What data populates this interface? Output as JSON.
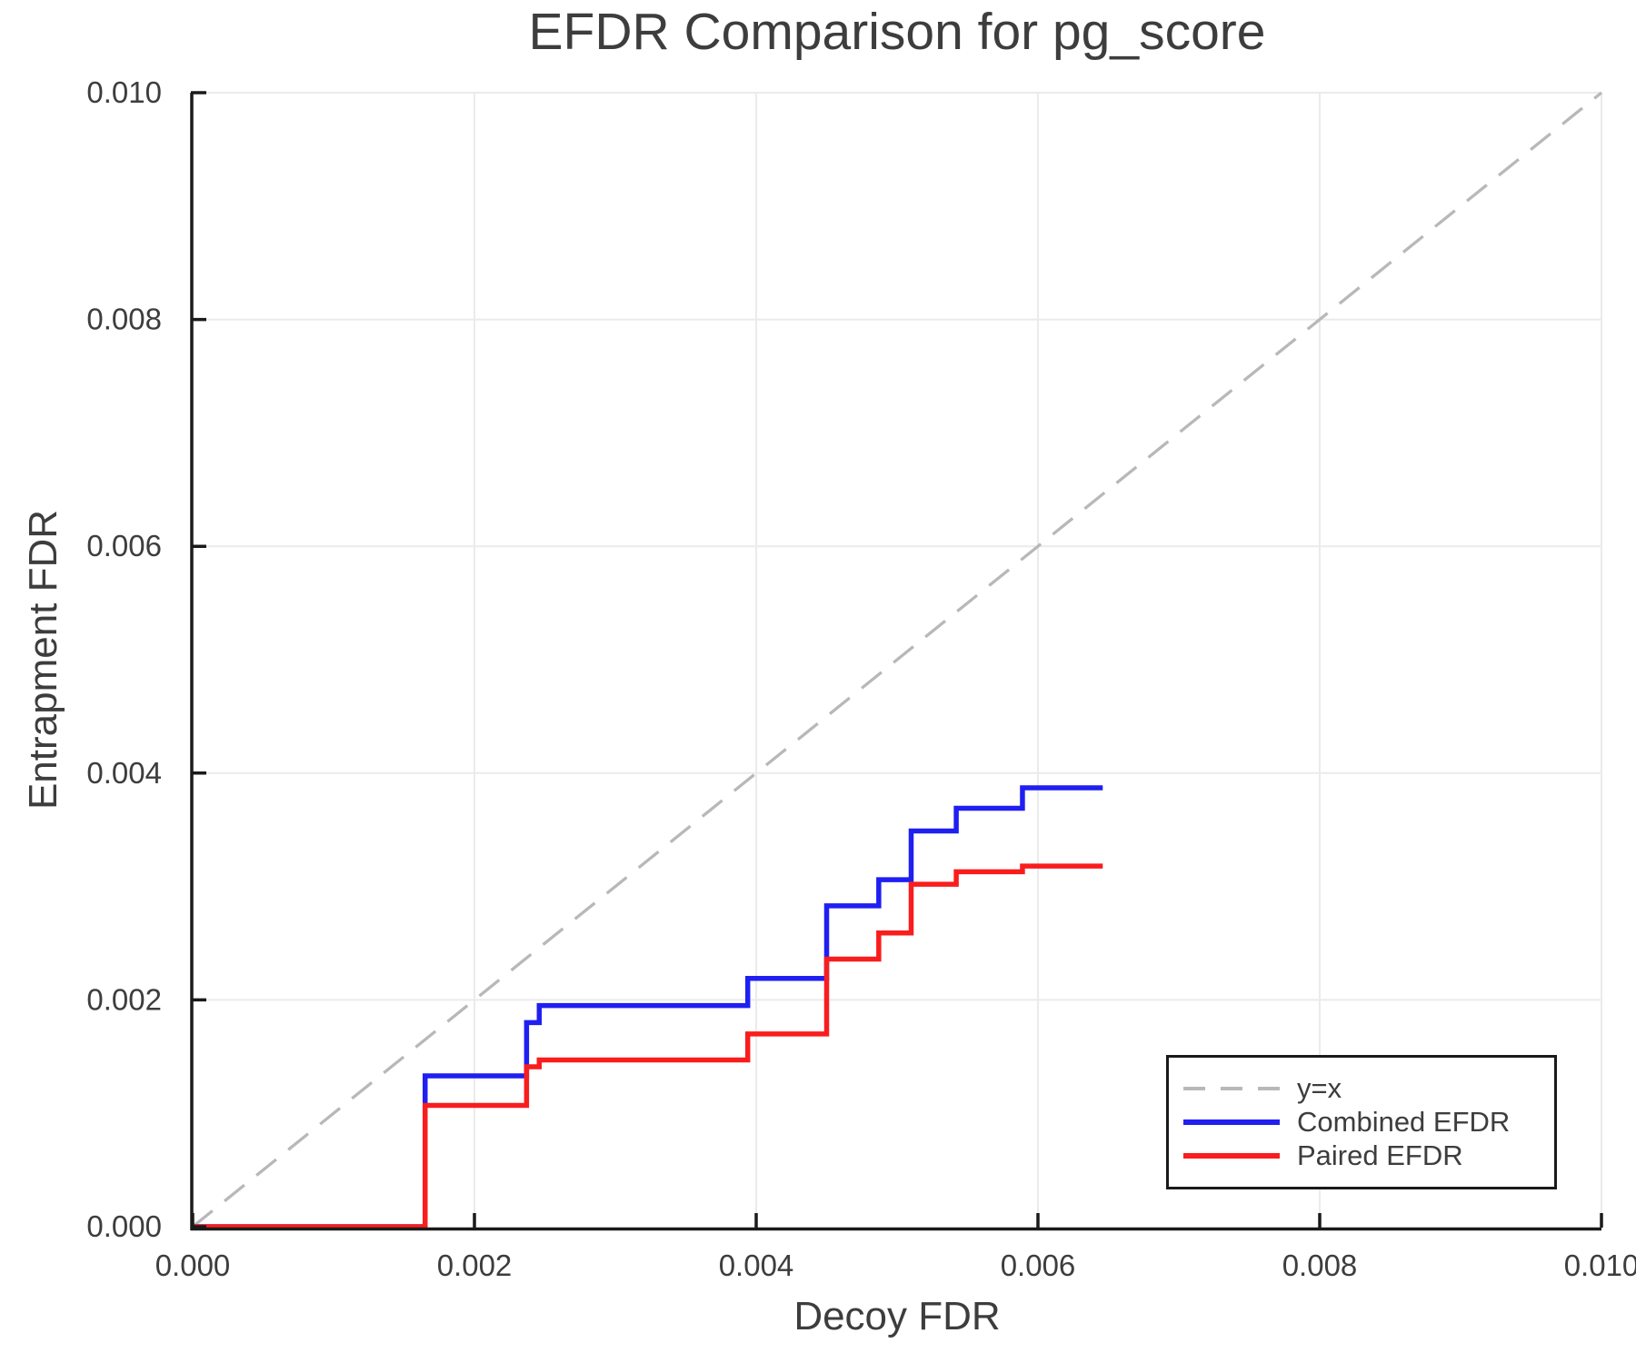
{
  "chart_data": {
    "type": "line",
    "title": "EFDR Comparison for pg_score",
    "xlabel": "Decoy FDR",
    "ylabel": "Entrapment FDR",
    "xlim": [
      0.0,
      0.01
    ],
    "ylim": [
      0.0,
      0.01
    ],
    "x_ticks": [
      0.0,
      0.002,
      0.004,
      0.006,
      0.008,
      0.01
    ],
    "x_tick_labels": [
      "0.000",
      "0.002",
      "0.004",
      "0.006",
      "0.008",
      "0.010"
    ],
    "y_ticks": [
      0.0,
      0.002,
      0.004,
      0.006,
      0.008,
      0.01
    ],
    "y_tick_labels": [
      "0.000",
      "0.002",
      "0.004",
      "0.006",
      "0.008",
      "0.010"
    ],
    "grid": true,
    "legend_position": "lower right",
    "reference_line": {
      "name": "y=x",
      "style": "dashed",
      "color": "#b8b8b8",
      "points": [
        [
          0.0,
          0.0
        ],
        [
          0.01,
          0.01
        ]
      ]
    },
    "series": [
      {
        "name": "Combined EFDR",
        "color": "#1f1ff2",
        "points": [
          [
            0.0,
            0.0
          ],
          [
            0.00165,
            0.0
          ],
          [
            0.00165,
            0.00133
          ],
          [
            0.00237,
            0.00133
          ],
          [
            0.00237,
            0.0018
          ],
          [
            0.00246,
            0.0018
          ],
          [
            0.00246,
            0.00195
          ],
          [
            0.00394,
            0.00195
          ],
          [
            0.00394,
            0.00219
          ],
          [
            0.0045,
            0.00219
          ],
          [
            0.0045,
            0.00283
          ],
          [
            0.00487,
            0.00283
          ],
          [
            0.00487,
            0.00306
          ],
          [
            0.0051,
            0.00306
          ],
          [
            0.0051,
            0.00349
          ],
          [
            0.00542,
            0.00349
          ],
          [
            0.00542,
            0.00369
          ],
          [
            0.00589,
            0.00369
          ],
          [
            0.00589,
            0.00387
          ],
          [
            0.00646,
            0.00387
          ]
        ]
      },
      {
        "name": "Paired EFDR",
        "color": "#f91d1d",
        "points": [
          [
            0.0,
            0.0
          ],
          [
            0.00165,
            0.0
          ],
          [
            0.00165,
            0.00107
          ],
          [
            0.00237,
            0.00107
          ],
          [
            0.00237,
            0.00141
          ],
          [
            0.00246,
            0.00141
          ],
          [
            0.00246,
            0.00147
          ],
          [
            0.00394,
            0.00147
          ],
          [
            0.00394,
            0.0017
          ],
          [
            0.0045,
            0.0017
          ],
          [
            0.0045,
            0.00236
          ],
          [
            0.00487,
            0.00236
          ],
          [
            0.00487,
            0.00259
          ],
          [
            0.0051,
            0.00259
          ],
          [
            0.0051,
            0.00302
          ],
          [
            0.00542,
            0.00302
          ],
          [
            0.00542,
            0.00313
          ],
          [
            0.00589,
            0.00313
          ],
          [
            0.00589,
            0.00318
          ],
          [
            0.00646,
            0.00318
          ]
        ]
      }
    ],
    "style": {
      "grid_color": "#ebebeb",
      "spine_color": "#1a1a1a",
      "text_color": "#3d3d3d",
      "background": "#ffffff",
      "series_line_width": 5.5,
      "reference_line_width": 3.3,
      "reference_dash": "28 17"
    }
  }
}
